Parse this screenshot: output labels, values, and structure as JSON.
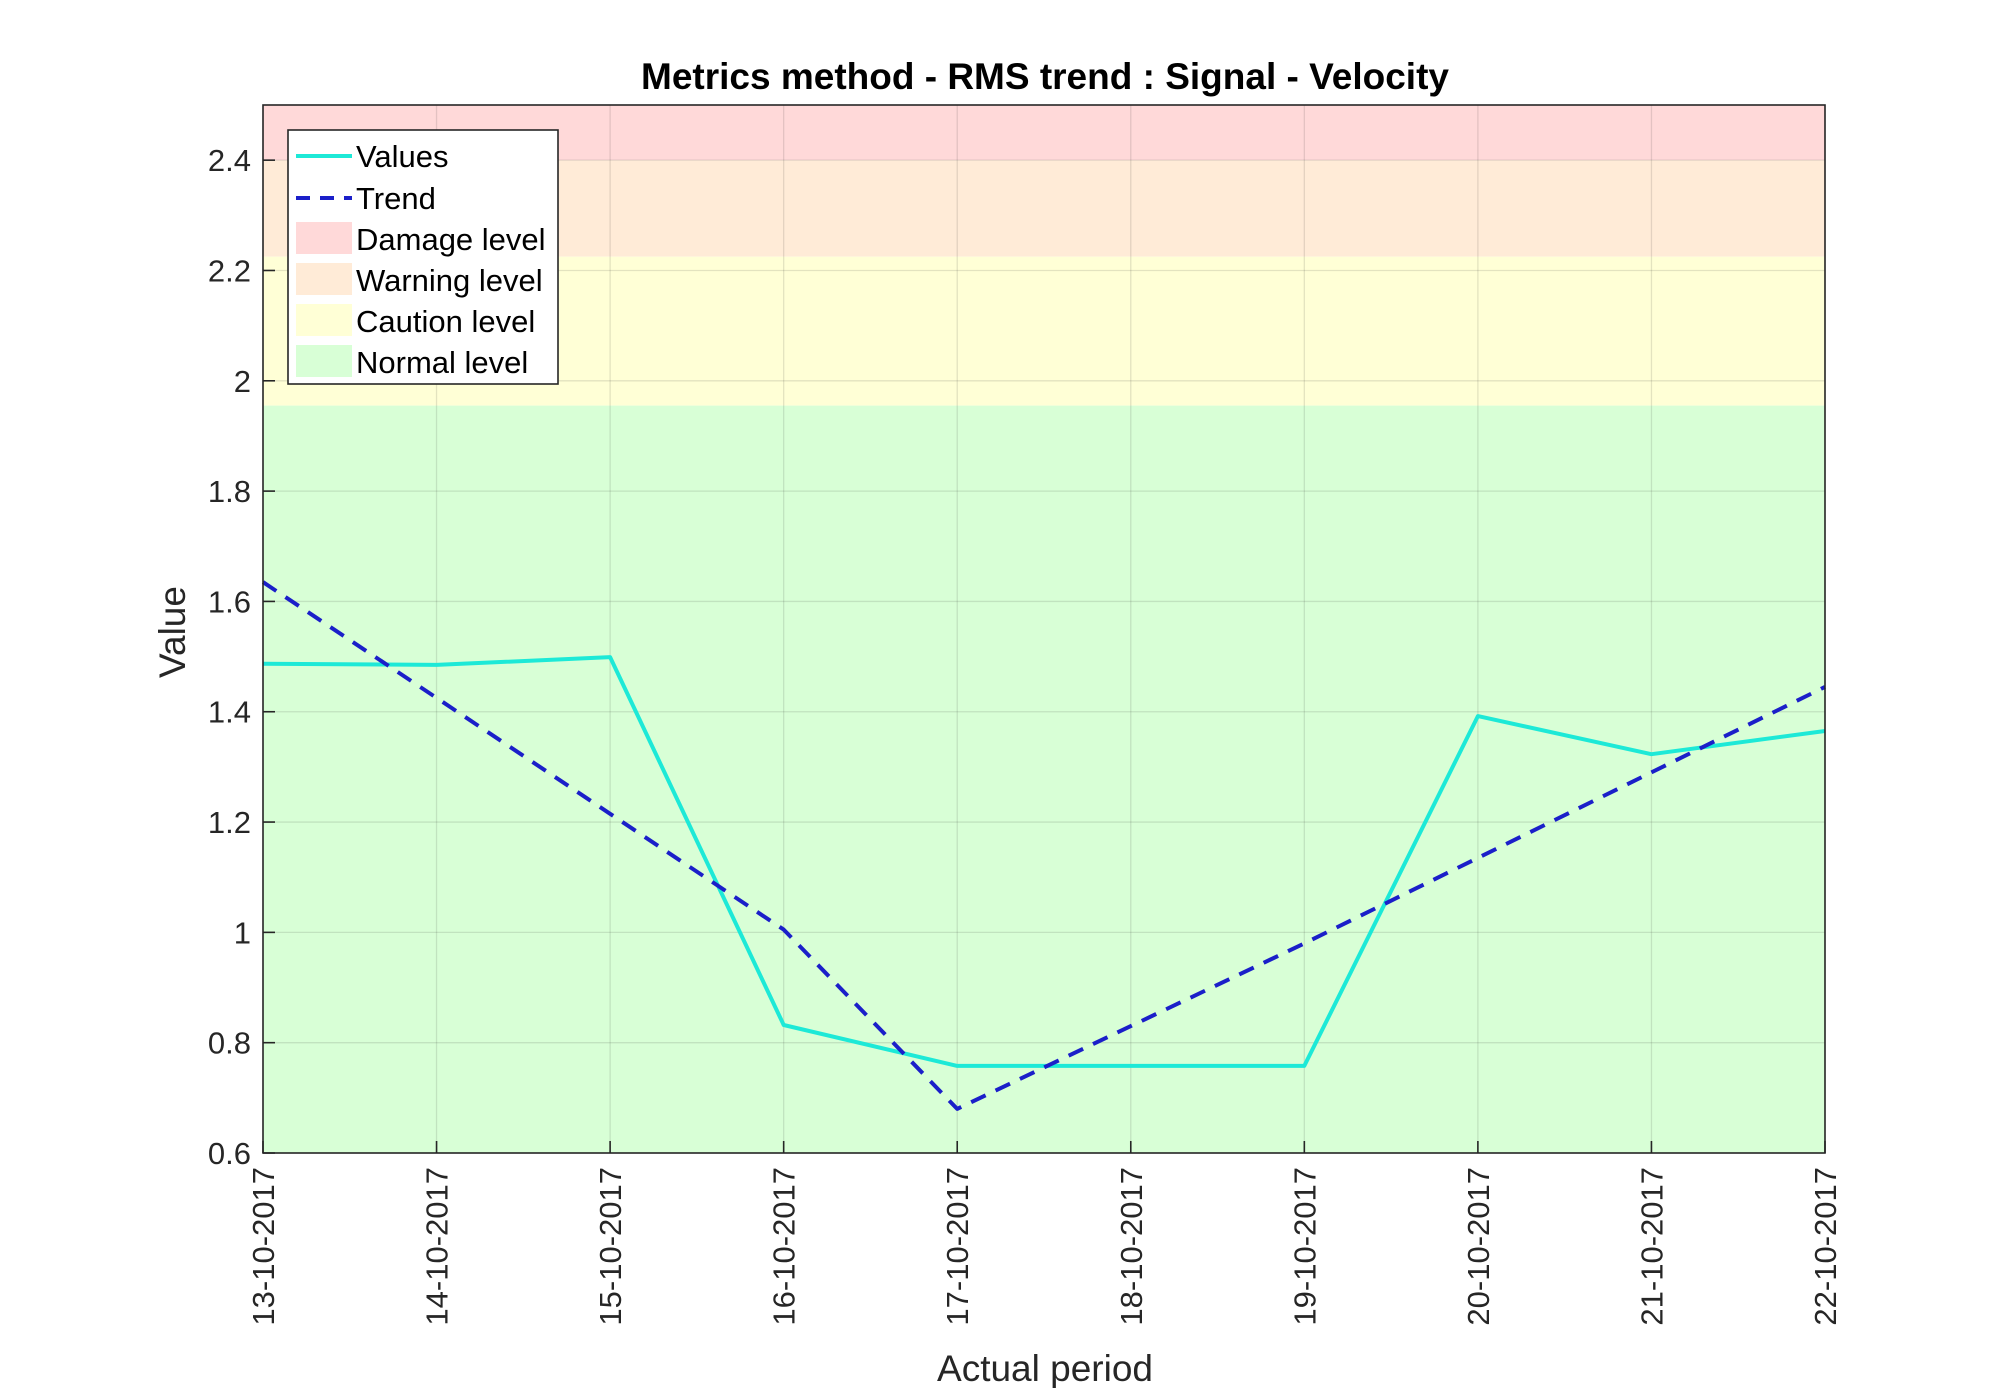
{
  "chart_data": {
    "type": "line",
    "title": "Metrics method - RMS trend : Signal - Velocity",
    "xlabel": "Actual period",
    "ylabel": "Value",
    "categories": [
      "13-10-2017",
      "14-10-2017",
      "15-10-2017",
      "16-10-2017",
      "17-10-2017",
      "18-10-2017",
      "19-10-2017",
      "20-10-2017",
      "21-10-2017",
      "22-10-2017"
    ],
    "ylim": [
      0.6,
      2.5
    ],
    "yticks": [
      0.6,
      0.8,
      1,
      1.2,
      1.4,
      1.6,
      1.8,
      2,
      2.2,
      2.4
    ],
    "ytick_labels": [
      "0.6",
      "0.8",
      "1",
      "1.2",
      "1.4",
      "1.6",
      "1.8",
      "2",
      "2.2",
      "2.4"
    ],
    "grid": true,
    "legend_position": "top-left",
    "series": [
      {
        "name": "Values",
        "style": "solid",
        "color": "#1de9d7",
        "values": [
          1.487,
          1.485,
          1.499,
          0.832,
          0.758,
          0.758,
          0.758,
          1.392,
          1.323,
          1.365
        ]
      },
      {
        "name": "Trend",
        "style": "dashed",
        "color": "#1b1fc9",
        "values": [
          1.635,
          1.425,
          1.215,
          1.005,
          0.68,
          0.83,
          0.98,
          1.135,
          1.29,
          1.445
        ]
      }
    ],
    "bands": [
      {
        "name": "Damage level",
        "from": 2.4,
        "to": 2.5,
        "color": "#ffd9d9"
      },
      {
        "name": "Warning level",
        "from": 2.225,
        "to": 2.4,
        "color": "#ffebd7"
      },
      {
        "name": "Caution level",
        "from": 1.955,
        "to": 2.225,
        "color": "#ffffd6"
      },
      {
        "name": "Normal level",
        "from": 0.6,
        "to": 1.955,
        "color": "#d8ffd6"
      }
    ]
  }
}
